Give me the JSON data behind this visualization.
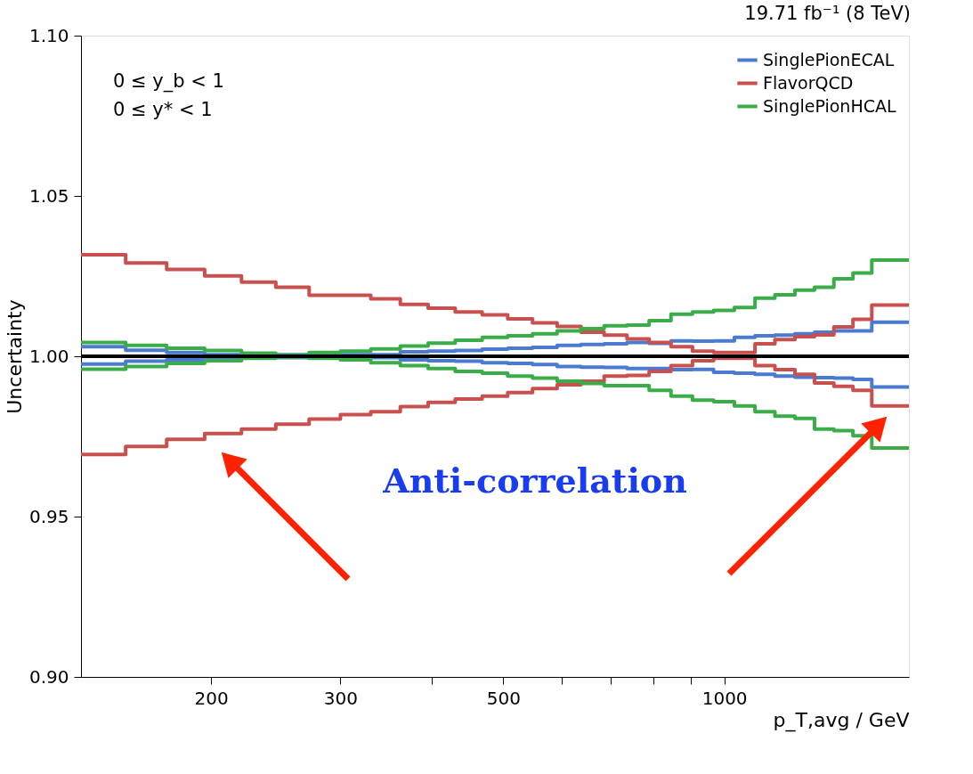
{
  "chart_data": {
    "type": "step",
    "title": "19.71 fb⁻¹ (8 TeV)",
    "xlabel": "p_T,avg / GeV",
    "ylabel": "Uncertainty",
    "x": [
      133,
      153,
      174,
      196,
      220,
      245,
      272,
      300,
      330,
      362,
      395,
      430,
      468,
      507,
      548,
      592,
      638,
      686,
      737,
      790,
      846,
      905,
      967,
      1032,
      1101,
      1172,
      1248,
      1327,
      1410,
      1497,
      1588,
      1784
    ],
    "series": [
      {
        "name": "SinglePionECAL",
        "color": "#4a7bd0",
        "values": [
          1.003,
          1.0019,
          1.0012,
          1.0005,
          1.0005,
          1.0005,
          1.0005,
          1.0005,
          1.0005,
          1.0014,
          1.0016,
          1.0018,
          1.0022,
          1.0025,
          1.0028,
          1.0034,
          1.0037,
          1.0039,
          1.0043,
          1.004,
          1.0048,
          1.0047,
          1.0048,
          1.0059,
          1.0064,
          1.0066,
          1.007,
          1.0075,
          1.0079,
          1.0079,
          1.0106,
          1.0106
        ]
      },
      {
        "color": "#4a7bd0",
        "values": [
          0.9976,
          0.9985,
          0.9989,
          0.9994,
          0.9996,
          0.9996,
          0.9996,
          0.9996,
          0.9996,
          0.9989,
          0.9986,
          0.9985,
          0.998,
          0.9978,
          0.9974,
          0.9968,
          0.9966,
          0.9965,
          0.9962,
          0.9962,
          0.9958,
          0.9959,
          0.995,
          0.9947,
          0.9944,
          0.9938,
          0.9935,
          0.9933,
          0.9932,
          0.9928,
          0.9904,
          0.9904
        ]
      },
      {
        "name": "FlavorQCD",
        "color": "#c8504f",
        "values": [
          1.0317,
          1.0291,
          1.0271,
          1.0251,
          1.0231,
          1.0215,
          1.019,
          1.019,
          1.0179,
          1.0162,
          1.015,
          1.0138,
          1.0129,
          1.0117,
          1.0104,
          1.0093,
          1.0075,
          1.0066,
          1.0054,
          1.0043,
          1.003,
          1.0016,
          1.0012,
          1.0012,
          1.0039,
          1.0052,
          1.0061,
          1.0067,
          1.0092,
          1.0115,
          1.016,
          1.016
        ]
      },
      {
        "color": "#c8504f",
        "values": [
          0.9694,
          0.9719,
          0.9741,
          0.9759,
          0.9773,
          0.9788,
          0.9804,
          0.9818,
          0.9827,
          0.9843,
          0.9856,
          0.9867,
          0.9876,
          0.9887,
          0.9899,
          0.9911,
          0.9922,
          0.9938,
          0.994,
          0.9953,
          0.9971,
          0.9986,
          0.9994,
          0.9994,
          0.9971,
          0.9958,
          0.9944,
          0.9917,
          0.9906,
          0.9894,
          0.9845,
          0.9845
        ]
      },
      {
        "name": "SinglePionHCAL",
        "color": "#3aad48",
        "values": [
          1.0043,
          1.0034,
          1.0025,
          1.0018,
          1.001,
          1.0003,
          1.0012,
          1.0016,
          1.0023,
          1.0032,
          1.0041,
          1.005,
          1.0059,
          1.0064,
          1.007,
          1.0079,
          1.0086,
          1.0095,
          1.0097,
          1.0111,
          1.0131,
          1.0138,
          1.0143,
          1.0152,
          1.0181,
          1.0192,
          1.0206,
          1.0215,
          1.0242,
          1.026,
          1.03,
          1.03
        ]
      },
      {
        "color": "#3aad48",
        "values": [
          0.996,
          0.9968,
          0.9978,
          0.9986,
          0.9994,
          0.9997,
          0.9994,
          0.9989,
          0.998,
          0.9971,
          0.9962,
          0.9953,
          0.9947,
          0.9938,
          0.9932,
          0.9922,
          0.9915,
          0.9908,
          0.9908,
          0.9894,
          0.9876,
          0.9863,
          0.9858,
          0.9845,
          0.9827,
          0.9813,
          0.9806,
          0.9773,
          0.9768,
          0.9752,
          0.9714,
          0.9714
        ]
      }
    ],
    "log": "x",
    "xlim": [
      133,
      1784
    ],
    "xticks": [
      200,
      300,
      {
        "value": 400,
        "label": null
      },
      500,
      {
        "value": 600,
        "label": null
      },
      {
        "value": 700,
        "label": null
      },
      {
        "value": 800,
        "label": null
      },
      {
        "value": 900,
        "label": null
      },
      1000
    ],
    "ylim": [
      0.9,
      1.1
    ],
    "yticks": [
      {
        "value": 0.9,
        "label": "0.90"
      },
      {
        "value": 0.95,
        "label": "0.95"
      },
      {
        "value": 1.0,
        "label": "1.00"
      },
      {
        "value": 1.05,
        "label": "1.05"
      },
      {
        "value": 1.1,
        "label": "1.10"
      }
    ],
    "ref_lines": [
      {
        "axis": "y",
        "value": 1.0,
        "color": "#000000"
      }
    ],
    "annotations": [
      "0 ≤ y_b < 1",
      "0 ≤ y* < 1",
      "Anti-correlation"
    ],
    "legend": "top right",
    "grid": false,
    "line_style": "solid",
    "marker": "none"
  }
}
